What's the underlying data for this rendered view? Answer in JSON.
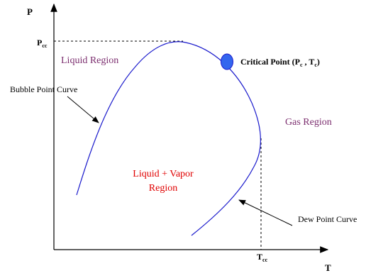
{
  "axes": {
    "y_label": "P",
    "x_label": "T",
    "y_marker": {
      "text": "P",
      "sub": "cc"
    },
    "x_marker": {
      "text": "T",
      "sub": "cc"
    }
  },
  "regions": {
    "liquid": "Liquid Region",
    "gas": "Gas Region",
    "two_phase": [
      "Liquid + Vapor",
      "Region"
    ]
  },
  "curves": {
    "bubble": "Bubble Point Curve",
    "dew": "Dew Point Curve"
  },
  "critical_point": {
    "parts": [
      "Critical Point (P",
      "c",
      " , T",
      "c",
      ")"
    ]
  }
}
